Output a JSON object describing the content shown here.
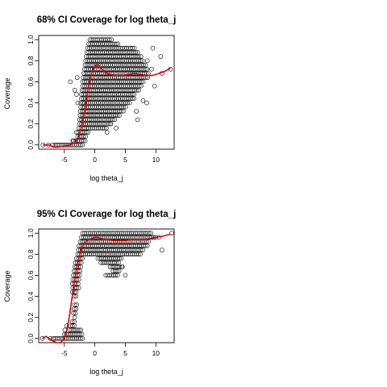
{
  "chart_data": [
    {
      "type": "scatter",
      "title": "68% CI Coverage for log theta_j",
      "xlabel": "log theta_j",
      "ylabel": "Coverage",
      "xlim": [
        -9.2,
        13
      ],
      "ylim": [
        -0.04,
        1.04
      ],
      "xticks": [
        -5,
        0,
        5,
        10
      ],
      "yticks": [
        0.0,
        0.2,
        0.4,
        0.6,
        0.8,
        1.0
      ],
      "grid": false,
      "points_style": "open circles",
      "point_bands": [
        {
          "y": 1.0,
          "xmin": -0.8,
          "xmax": 3.0
        },
        {
          "y": 0.96,
          "xmin": -1.0,
          "xmax": 4.0
        },
        {
          "y": 0.92,
          "xmin": -1.2,
          "xmax": 6.5
        },
        {
          "y": 0.88,
          "xmin": -1.3,
          "xmax": 7.3
        },
        {
          "y": 0.84,
          "xmin": -1.4,
          "xmax": 7.6
        },
        {
          "y": 0.8,
          "xmin": -1.5,
          "xmax": 8.0
        },
        {
          "y": 0.76,
          "xmin": -1.6,
          "xmax": 8.5
        },
        {
          "y": 0.72,
          "xmin": -1.7,
          "xmax": 8.8
        },
        {
          "y": 0.68,
          "xmin": -1.8,
          "xmax": 8.9
        },
        {
          "y": 0.64,
          "xmin": -1.9,
          "xmax": 8.7
        },
        {
          "y": 0.6,
          "xmin": -2.0,
          "xmax": 8.0
        },
        {
          "y": 0.56,
          "xmin": -2.0,
          "xmax": 7.8
        },
        {
          "y": 0.52,
          "xmin": -2.1,
          "xmax": 7.2
        },
        {
          "y": 0.48,
          "xmin": -2.2,
          "xmax": 6.6
        },
        {
          "y": 0.44,
          "xmin": -2.2,
          "xmax": 6.6
        },
        {
          "y": 0.4,
          "xmin": -2.3,
          "xmax": 6.0
        },
        {
          "y": 0.36,
          "xmin": -2.3,
          "xmax": 5.2
        },
        {
          "y": 0.32,
          "xmin": -2.4,
          "xmax": 4.8
        },
        {
          "y": 0.28,
          "xmin": -2.4,
          "xmax": 4.0
        },
        {
          "y": 0.24,
          "xmin": -2.5,
          "xmax": 3.5
        },
        {
          "y": 0.2,
          "xmin": -2.5,
          "xmax": 2.8
        },
        {
          "y": 0.16,
          "xmin": -2.6,
          "xmax": 2.0
        },
        {
          "y": 0.12,
          "xmin": -2.7,
          "xmax": -1.0
        },
        {
          "y": 0.08,
          "xmin": -2.8,
          "xmax": -1.3
        },
        {
          "y": 0.04,
          "xmin": -3.5,
          "xmax": -1.5
        },
        {
          "y": 0.0,
          "xmin": -6.5,
          "xmax": -1.8
        }
      ],
      "outlier_points": [
        {
          "x": -8.5,
          "y": 0.0
        },
        {
          "x": -7.6,
          "y": 0.0
        },
        {
          "x": -6.9,
          "y": 0.0
        },
        {
          "x": -3.6,
          "y": 0.04
        },
        {
          "x": -3.0,
          "y": 0.12
        },
        {
          "x": -4.0,
          "y": 0.6
        },
        {
          "x": -3.3,
          "y": 0.52
        },
        {
          "x": -3.0,
          "y": 0.48
        },
        {
          "x": -2.9,
          "y": 0.64
        },
        {
          "x": -2.8,
          "y": 0.4
        },
        {
          "x": 9.5,
          "y": 0.92
        },
        {
          "x": 10.8,
          "y": 0.84
        },
        {
          "x": 12.4,
          "y": 0.72
        },
        {
          "x": 9.3,
          "y": 0.72
        },
        {
          "x": 8.6,
          "y": 0.8
        },
        {
          "x": 7.9,
          "y": 0.42
        },
        {
          "x": 8.5,
          "y": 0.4
        },
        {
          "x": 6.8,
          "y": 0.32
        },
        {
          "x": 7.0,
          "y": 0.24
        },
        {
          "x": 3.5,
          "y": 0.16
        },
        {
          "x": 2.6,
          "y": 0.2
        },
        {
          "x": 2.0,
          "y": 0.12
        },
        {
          "x": 11.0,
          "y": 0.68
        },
        {
          "x": 9.8,
          "y": 0.56
        }
      ],
      "smooth_curve": {
        "color": "#e00000",
        "x": [
          -8.5,
          -7.5,
          -6.8,
          -6.0,
          -5.0,
          -4.0,
          -3.4,
          -3.0,
          -2.6,
          -2.2,
          -1.8,
          -1.4,
          -1.0,
          -0.6,
          -0.2,
          0.2,
          0.6,
          1.0,
          1.6,
          2.5,
          3.5,
          4.5,
          5.5,
          6.5,
          7.5,
          8.5,
          9.5,
          10.5,
          11.5,
          12.4
        ],
        "y": [
          0.0,
          0.0,
          -0.02,
          -0.02,
          -0.01,
          0.0,
          0.02,
          0.04,
          0.09,
          0.17,
          0.28,
          0.43,
          0.57,
          0.67,
          0.73,
          0.76,
          0.76,
          0.73,
          0.69,
          0.67,
          0.66,
          0.66,
          0.67,
          0.68,
          0.67,
          0.66,
          0.66,
          0.68,
          0.7,
          0.73
        ]
      }
    },
    {
      "type": "scatter",
      "title": "95% CI Coverage for  log theta_j",
      "xlabel": "log theta_j",
      "ylabel": "Coverage",
      "xlim": [
        -9.2,
        13
      ],
      "ylim": [
        -0.04,
        1.04
      ],
      "xticks": [
        -5,
        0,
        5,
        10
      ],
      "yticks": [
        0.0,
        0.2,
        0.4,
        0.6,
        0.8,
        1.0
      ],
      "grid": false,
      "points_style": "open circles",
      "point_bands": [
        {
          "y": 1.0,
          "xmin": -2.0,
          "xmax": 9.5
        },
        {
          "y": 0.96,
          "xmin": -2.2,
          "xmax": 10.0
        },
        {
          "y": 0.92,
          "xmin": -2.4,
          "xmax": 9.0
        },
        {
          "y": 0.88,
          "xmin": -2.6,
          "xmax": 8.6
        },
        {
          "y": 0.84,
          "xmin": -2.7,
          "xmax": 8.0
        },
        {
          "y": 0.8,
          "xmin": -2.8,
          "xmax": 7.5
        },
        {
          "y": 0.76,
          "xmin": -3.0,
          "xmax": -1.8
        },
        {
          "y": 0.76,
          "xmin": 0.5,
          "xmax": 4.5
        },
        {
          "y": 0.72,
          "xmin": -3.2,
          "xmax": -2.0
        },
        {
          "y": 0.72,
          "xmin": 1.0,
          "xmax": 4.0
        },
        {
          "y": 0.68,
          "xmin": -3.3,
          "xmax": -2.1
        },
        {
          "y": 0.68,
          "xmin": 2.5,
          "xmax": 4.5
        },
        {
          "y": 0.64,
          "xmin": -3.4,
          "xmax": -2.2
        },
        {
          "y": 0.64,
          "xmin": 3.0,
          "xmax": 4.0
        },
        {
          "y": 0.6,
          "xmin": -3.5,
          "xmax": -2.3
        },
        {
          "y": 0.6,
          "xmin": 1.8,
          "xmax": 3.8
        },
        {
          "y": 0.56,
          "xmin": -3.6,
          "xmax": -2.4
        },
        {
          "y": 0.52,
          "xmin": -3.7,
          "xmax": -2.5
        },
        {
          "y": 0.48,
          "xmin": -3.6,
          "xmax": -2.6
        },
        {
          "y": 0.44,
          "xmin": -3.7,
          "xmax": -2.8
        },
        {
          "y": 0.4,
          "xmin": -3.4,
          "xmax": -2.9
        },
        {
          "y": 0.32,
          "xmin": -3.3,
          "xmax": -2.9
        },
        {
          "y": 0.28,
          "xmin": -3.4,
          "xmax": -3.0
        },
        {
          "y": 0.24,
          "xmin": -3.5,
          "xmax": -3.0
        },
        {
          "y": 0.2,
          "xmin": -3.3,
          "xmax": -3.0
        },
        {
          "y": 0.16,
          "xmin": -3.7,
          "xmax": -3.2
        },
        {
          "y": 0.12,
          "xmin": -4.0,
          "xmax": -3.2
        },
        {
          "y": 0.08,
          "xmin": -4.2,
          "xmax": -2.0
        },
        {
          "y": 0.04,
          "xmin": -5.0,
          "xmax": -2.0
        },
        {
          "y": 0.0,
          "xmin": -6.5,
          "xmax": -1.8
        }
      ],
      "outlier_points": [
        {
          "x": -8.6,
          "y": 0.0
        },
        {
          "x": -7.3,
          "y": 0.0
        },
        {
          "x": -6.8,
          "y": 0.0
        },
        {
          "x": -4.6,
          "y": 0.12
        },
        {
          "x": -4.9,
          "y": 0.08
        },
        {
          "x": 11.0,
          "y": 0.84
        },
        {
          "x": 12.6,
          "y": 1.0
        },
        {
          "x": 10.5,
          "y": 0.96
        },
        {
          "x": 4.5,
          "y": 0.68
        },
        {
          "x": 5.0,
          "y": 0.6
        }
      ],
      "smooth_curve": {
        "color": "#e00000",
        "x": [
          -8.6,
          -8.0,
          -7.5,
          -7.0,
          -6.3,
          -5.6,
          -5.0,
          -4.6,
          -4.2,
          -3.8,
          -3.4,
          -3.0,
          -2.6,
          -2.2,
          -1.8,
          -1.4,
          -1.0,
          -0.5,
          0.0,
          0.5,
          1.0,
          2.0,
          3.0,
          4.0,
          5.0,
          6.0,
          7.0,
          8.0,
          9.0,
          10.0,
          11.0,
          12.4
        ],
        "y": [
          0.0,
          0.02,
          0.0,
          -0.02,
          -0.04,
          -0.04,
          0.0,
          0.08,
          0.2,
          0.36,
          0.52,
          0.66,
          0.77,
          0.85,
          0.9,
          0.92,
          0.94,
          0.95,
          0.96,
          0.96,
          0.95,
          0.94,
          0.93,
          0.93,
          0.93,
          0.94,
          0.94,
          0.94,
          0.95,
          0.96,
          0.97,
          0.99
        ]
      }
    }
  ]
}
